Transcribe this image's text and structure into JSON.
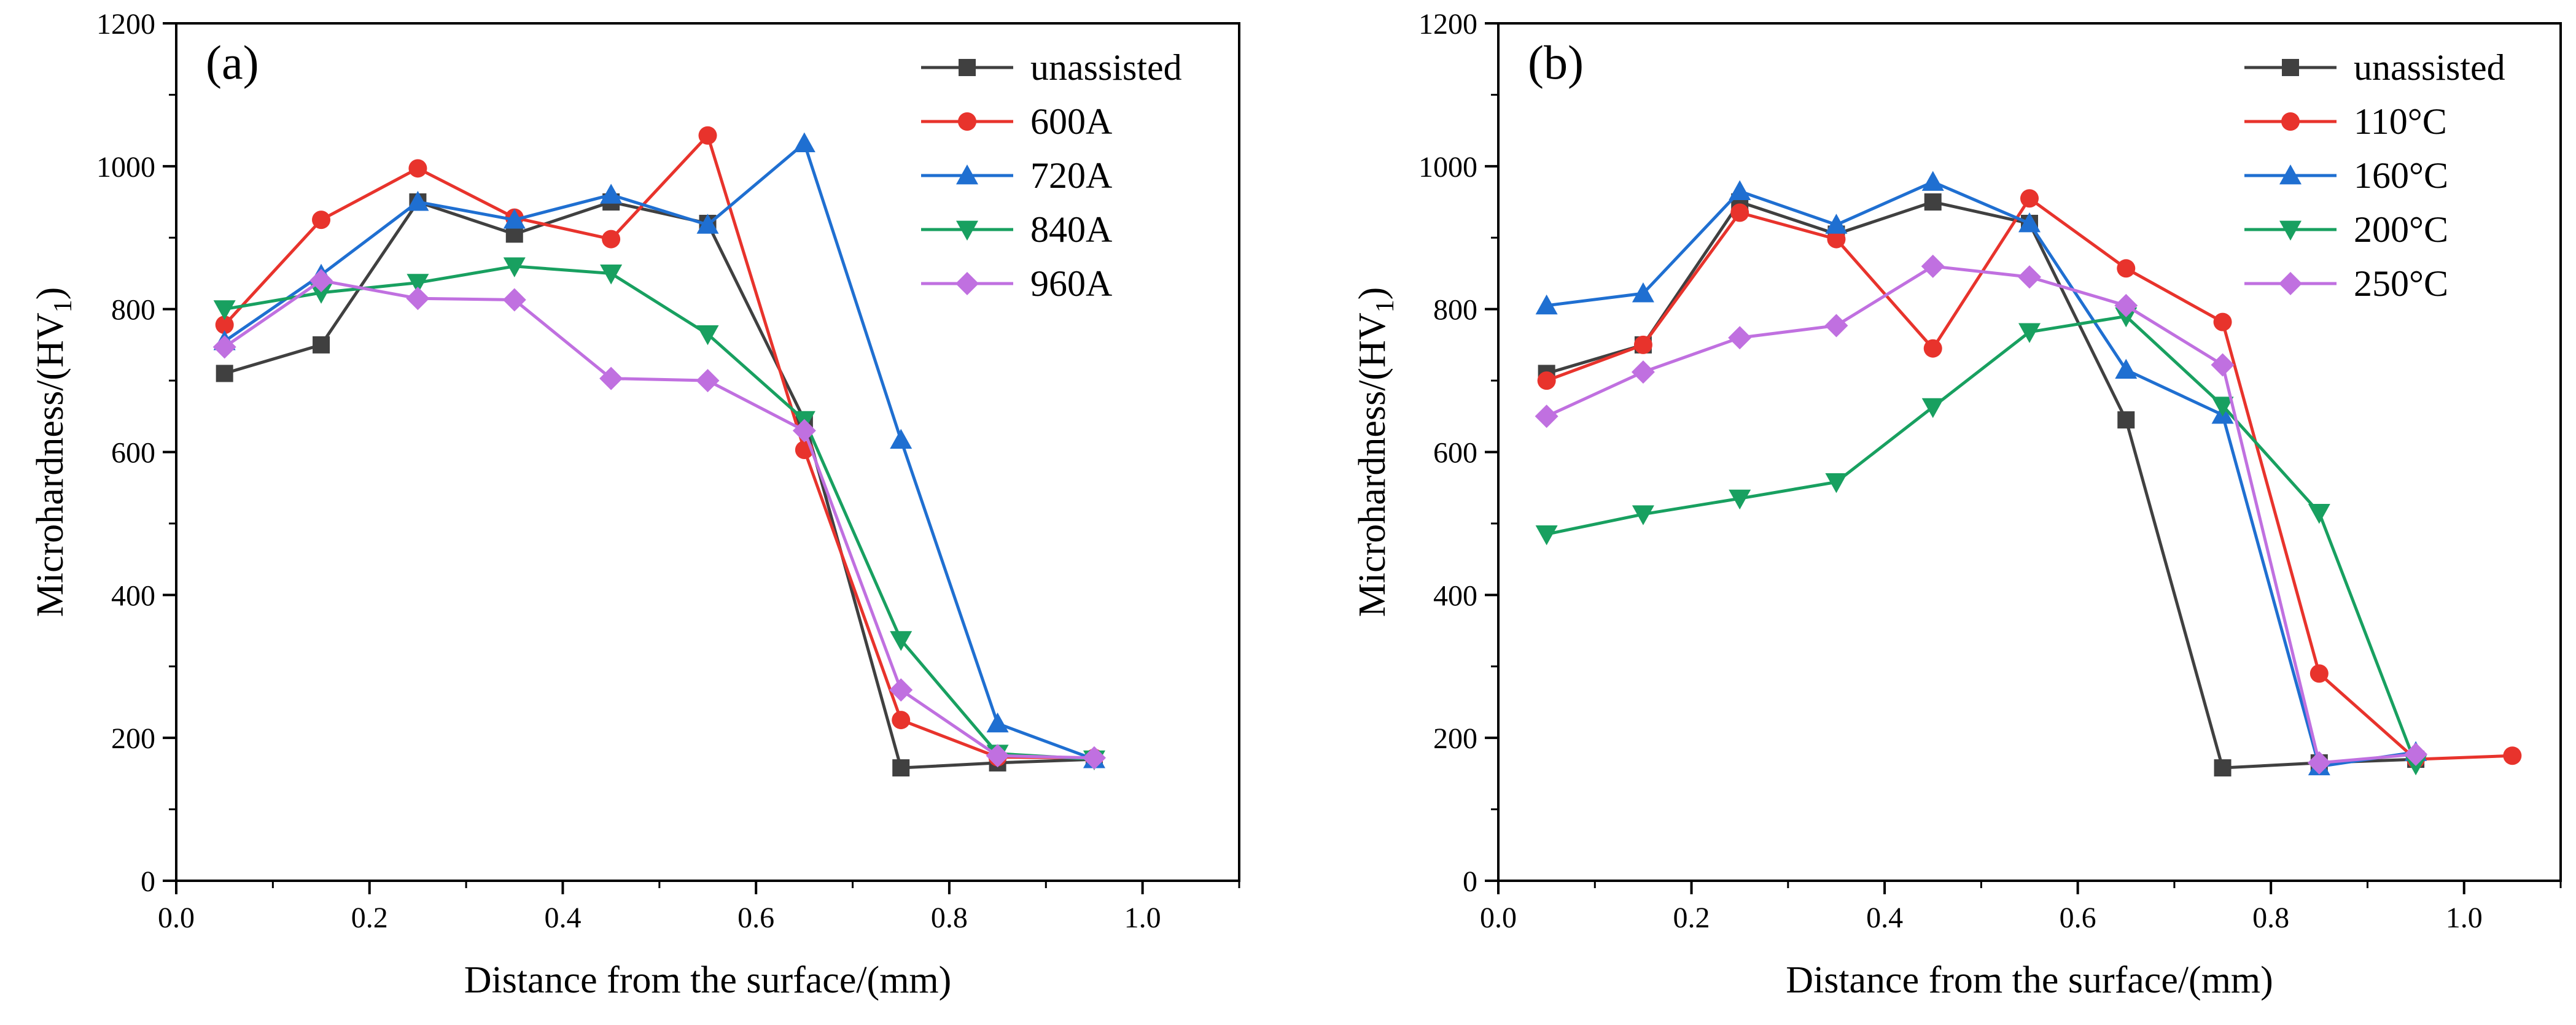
{
  "chart_data": [
    {
      "type": "line",
      "panel_label": "(a)",
      "xlabel": "Distance from the surface/(mm)",
      "ylabel_main": "Microhardness/(HV",
      "ylabel_sub": "1",
      "ylabel_close": ")",
      "xlim": [
        0.0,
        1.1
      ],
      "ylim": [
        0,
        1200
      ],
      "xticks": [
        "0.0",
        "0.2",
        "0.4",
        "0.6",
        "0.8",
        "1.0"
      ],
      "yticks": [
        "0",
        "200",
        "400",
        "600",
        "800",
        "1000",
        "1200"
      ],
      "legend_position": "top-right",
      "x": [
        0.05,
        0.15,
        0.25,
        0.35,
        0.45,
        0.55,
        0.65,
        0.75,
        0.85,
        0.95
      ],
      "series": [
        {
          "name": "unassisted",
          "color": "#404040",
          "marker": "square",
          "values": [
            710,
            750,
            950,
            905,
            950,
            920,
            645,
            158,
            165,
            170
          ]
        },
        {
          "name": "600A",
          "color": "#e8332c",
          "marker": "circle",
          "values": [
            778,
            925,
            997,
            928,
            898,
            1043,
            603,
            225,
            173,
            172
          ]
        },
        {
          "name": "720A",
          "color": "#1f6fd1",
          "marker": "triangle-up",
          "values": [
            755,
            848,
            950,
            925,
            960,
            918,
            1032,
            617,
            220,
            170
          ]
        },
        {
          "name": "840A",
          "color": "#18a060",
          "marker": "triangle-down",
          "values": [
            800,
            823,
            837,
            860,
            850,
            765,
            645,
            337,
            178,
            170
          ]
        },
        {
          "name": "960A",
          "color": "#c070e0",
          "marker": "diamond",
          "values": [
            747,
            840,
            815,
            813,
            703,
            700,
            630,
            267,
            175,
            172
          ]
        }
      ]
    },
    {
      "type": "line",
      "panel_label": "(b)",
      "xlabel": "Distance from the surface/(mm)",
      "ylabel_main": "Microhardness/(HV",
      "ylabel_sub": "1",
      "ylabel_close": ")",
      "xlim": [
        0.0,
        1.1
      ],
      "ylim": [
        0,
        1200
      ],
      "xticks": [
        "0.0",
        "0.2",
        "0.4",
        "0.6",
        "0.8",
        "1.0"
      ],
      "yticks": [
        "0",
        "200",
        "400",
        "600",
        "800",
        "1000",
        "1200"
      ],
      "legend_position": "top-right",
      "series": [
        {
          "name": "unassisted",
          "color": "#404040",
          "marker": "square",
          "x": [
            0.05,
            0.15,
            0.25,
            0.35,
            0.45,
            0.55,
            0.65,
            0.75,
            0.85,
            0.95
          ],
          "values": [
            710,
            750,
            950,
            905,
            950,
            920,
            645,
            158,
            165,
            170
          ]
        },
        {
          "name": "110°C",
          "color": "#e8332c",
          "marker": "circle",
          "x": [
            0.05,
            0.15,
            0.25,
            0.35,
            0.45,
            0.55,
            0.65,
            0.75,
            0.85,
            0.95,
            1.05
          ],
          "values": [
            700,
            750,
            935,
            898,
            745,
            955,
            857,
            782,
            290,
            170,
            175
          ]
        },
        {
          "name": "160°C",
          "color": "#1f6fd1",
          "marker": "triangle-up",
          "x": [
            0.05,
            0.15,
            0.25,
            0.35,
            0.45,
            0.55,
            0.65,
            0.75,
            0.85,
            0.95
          ],
          "values": [
            805,
            822,
            965,
            918,
            978,
            920,
            715,
            652,
            160,
            180
          ]
        },
        {
          "name": "200°C",
          "color": "#18a060",
          "marker": "triangle-down",
          "x": [
            0.05,
            0.15,
            0.25,
            0.35,
            0.45,
            0.55,
            0.65,
            0.75,
            0.85,
            0.95
          ],
          "values": [
            485,
            513,
            535,
            558,
            663,
            768,
            790,
            665,
            515,
            163
          ]
        },
        {
          "name": "250°C",
          "color": "#c070e0",
          "marker": "diamond",
          "x": [
            0.05,
            0.15,
            0.25,
            0.35,
            0.45,
            0.55,
            0.65,
            0.75,
            0.85,
            0.95
          ],
          "values": [
            650,
            712,
            760,
            777,
            860,
            845,
            805,
            722,
            165,
            177
          ]
        }
      ]
    }
  ]
}
